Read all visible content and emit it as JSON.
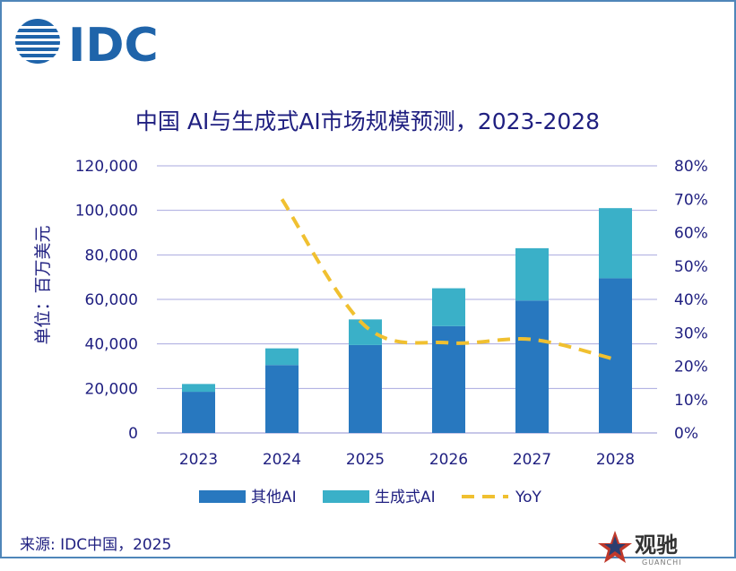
{
  "logo": {
    "text": "IDC"
  },
  "chart_data": {
    "type": "bar",
    "title": "中国 AI与生成式AI市场规模预测，2023-2028",
    "ylabel": "单位：百万美元",
    "categories": [
      "2023",
      "2024",
      "2025",
      "2026",
      "2027",
      "2028"
    ],
    "stacked": true,
    "series": [
      {
        "name": "其他AI",
        "type": "bar",
        "color": "#2878bf",
        "values": [
          18500,
          30500,
          39500,
          48000,
          59500,
          69500
        ]
      },
      {
        "name": "生成式AI",
        "type": "bar",
        "color": "#3ab0c8",
        "values": [
          3500,
          7500,
          11500,
          17000,
          23500,
          31500
        ]
      },
      {
        "name": "YoY",
        "type": "line",
        "axis": "right",
        "color": "#f0c030",
        "dash": true,
        "values": [
          null,
          0.7,
          0.32,
          0.27,
          0.28,
          0.22
        ]
      }
    ],
    "ylim": [
      0,
      120000
    ],
    "yticks": [
      "120,000",
      "100,000",
      "80,000",
      "60,000",
      "40,000",
      "20,000",
      "0"
    ],
    "y2lim": [
      0,
      0.8
    ],
    "y2ticks": [
      "80%",
      "70%",
      "60%",
      "50%",
      "40%",
      "30%",
      "20%",
      "10%",
      "0%"
    ],
    "grid": true,
    "legend_position": "bottom"
  },
  "source": "来源: IDC中国，2025",
  "watermark": {
    "text": "观驰",
    "sub": "GUANCHI"
  }
}
